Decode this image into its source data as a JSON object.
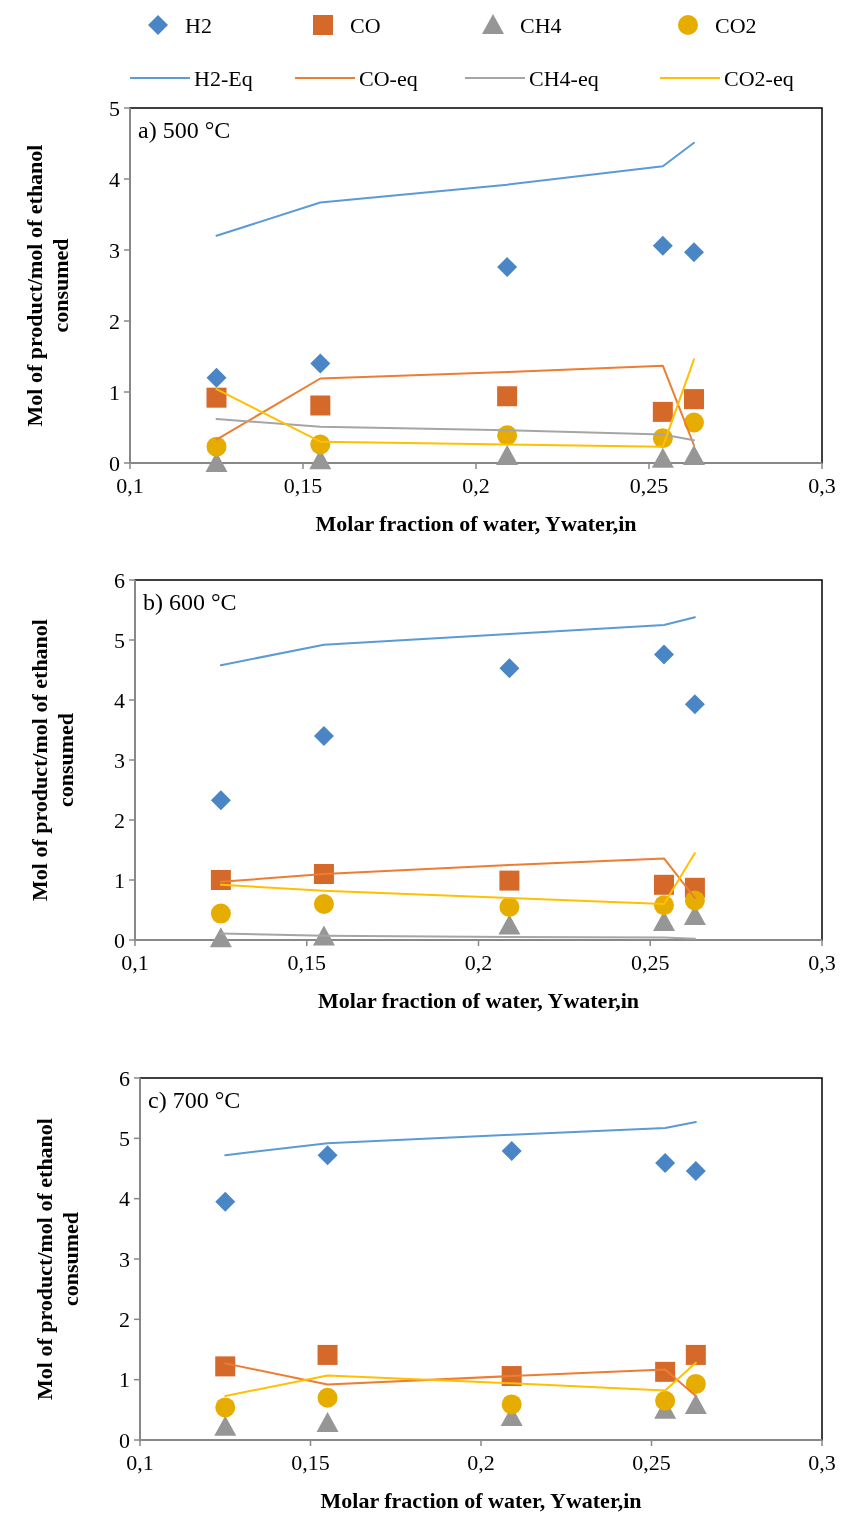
{
  "chart_data": [
    {
      "type": "scatter",
      "title": "a) 500 °C",
      "xlabel": "Molar fraction of water, Ywater,in",
      "ylabel": "Mol of product/mol of ethanol consumed",
      "x": [
        0.125,
        0.155,
        0.209,
        0.254,
        0.263
      ],
      "xlim": [
        0.1,
        0.3
      ],
      "xticks": [
        {
          "value": 0.1,
          "label": "0,1"
        },
        {
          "value": 0.15,
          "label": "0,15"
        },
        {
          "value": 0.2,
          "label": "0,2"
        },
        {
          "value": 0.25,
          "label": "0,25"
        },
        {
          "value": 0.3,
          "label": "0,3"
        }
      ],
      "ylim": [
        0,
        5
      ],
      "yticks": [
        0,
        1,
        2,
        3,
        4,
        5
      ],
      "grid": false,
      "legend": "top",
      "series": [
        {
          "name": "H2",
          "marker": "diamond",
          "color": "#4a86c5",
          "values": [
            1.2,
            1.4,
            2.76,
            3.06,
            2.97
          ]
        },
        {
          "name": "CO",
          "marker": "square",
          "color": "#d4692a",
          "values": [
            0.92,
            0.81,
            0.94,
            0.72,
            0.9
          ]
        },
        {
          "name": "CH4",
          "marker": "triangle",
          "color": "#969696",
          "values": [
            0.0,
            0.04,
            0.1,
            0.06,
            0.1
          ]
        },
        {
          "name": "CO2",
          "marker": "circle",
          "color": "#e6ac00",
          "values": [
            0.23,
            0.26,
            0.39,
            0.35,
            0.57
          ]
        },
        {
          "name": "H2-Eq",
          "type": "line",
          "marker": "none",
          "line_style": "solid",
          "color": "#5b9bd5",
          "values": [
            3.2,
            3.67,
            3.92,
            4.18,
            4.51
          ]
        },
        {
          "name": "CO-eq",
          "type": "line",
          "marker": "none",
          "line_style": "solid",
          "color": "#ed7d31",
          "values": [
            0.33,
            1.19,
            1.28,
            1.37,
            0.25
          ]
        },
        {
          "name": "CH4-eq",
          "type": "line",
          "marker": "none",
          "line_style": "solid",
          "color": "#a5a5a5",
          "values": [
            0.62,
            0.51,
            0.46,
            0.4,
            0.32
          ]
        },
        {
          "name": "CO2-eq",
          "type": "line",
          "marker": "none",
          "line_style": "solid",
          "color": "#ffc000",
          "values": [
            1.04,
            0.3,
            0.26,
            0.23,
            1.46
          ]
        }
      ]
    },
    {
      "type": "scatter",
      "title": "b) 600 °C",
      "xlabel": "Molar fraction of water, Ywater,in",
      "ylabel": "Mol of product/mol of ethanol consumed",
      "x": [
        0.125,
        0.155,
        0.209,
        0.254,
        0.263
      ],
      "xlim": [
        0.1,
        0.3
      ],
      "xticks": [
        {
          "value": 0.1,
          "label": "0,1"
        },
        {
          "value": 0.15,
          "label": "0,15"
        },
        {
          "value": 0.2,
          "label": "0,2"
        },
        {
          "value": 0.25,
          "label": "0,25"
        },
        {
          "value": 0.3,
          "label": "0,3"
        }
      ],
      "ylim": [
        0,
        6
      ],
      "yticks": [
        0,
        1,
        2,
        3,
        4,
        5,
        6
      ],
      "grid": false,
      "series": [
        {
          "marker": "diamond",
          "color": "#4a86c5",
          "values": [
            2.33,
            3.4,
            4.53,
            4.76,
            3.93
          ]
        },
        {
          "marker": "square",
          "color": "#d4692a",
          "values": [
            1.0,
            1.1,
            0.99,
            0.92,
            0.87
          ]
        },
        {
          "marker": "triangle",
          "color": "#969696",
          "values": [
            0.03,
            0.06,
            0.24,
            0.3,
            0.4
          ]
        },
        {
          "marker": "circle",
          "color": "#e6ac00",
          "values": [
            0.44,
            0.6,
            0.55,
            0.58,
            0.66
          ]
        },
        {
          "type": "line",
          "marker": "none",
          "line_style": "solid",
          "color": "#5b9bd5",
          "values": [
            4.58,
            4.92,
            5.1,
            5.25,
            5.38
          ]
        },
        {
          "type": "line",
          "marker": "none",
          "line_style": "solid",
          "color": "#ed7d31",
          "values": [
            0.97,
            1.1,
            1.25,
            1.36,
            0.7
          ]
        },
        {
          "type": "line",
          "marker": "none",
          "line_style": "solid",
          "color": "#a5a5a5",
          "values": [
            0.11,
            0.07,
            0.05,
            0.04,
            0.02
          ]
        },
        {
          "type": "line",
          "marker": "none",
          "line_style": "solid",
          "color": "#ffc000",
          "values": [
            0.92,
            0.82,
            0.7,
            0.6,
            1.45
          ]
        }
      ]
    },
    {
      "type": "scatter",
      "title": "c) 700 °C",
      "xlabel": "Molar fraction of water, Ywater,in",
      "ylabel": "Mol of product/mol of ethanol consumed",
      "x": [
        0.125,
        0.155,
        0.209,
        0.254,
        0.263
      ],
      "xlim": [
        0.1,
        0.3
      ],
      "xticks": [
        {
          "value": 0.1,
          "label": "0,1"
        },
        {
          "value": 0.15,
          "label": "0,15"
        },
        {
          "value": 0.2,
          "label": "0,2"
        },
        {
          "value": 0.25,
          "label": "0,25"
        },
        {
          "value": 0.3,
          "label": "0,3"
        }
      ],
      "ylim": [
        0,
        6
      ],
      "yticks": [
        0,
        1,
        2,
        3,
        4,
        5,
        6
      ],
      "grid": false,
      "series": [
        {
          "marker": "diamond",
          "color": "#4a86c5",
          "values": [
            3.95,
            4.72,
            4.79,
            4.59,
            4.46
          ]
        },
        {
          "marker": "square",
          "color": "#d4692a",
          "values": [
            1.22,
            1.41,
            1.06,
            1.13,
            1.41
          ]
        },
        {
          "marker": "triangle",
          "color": "#969696",
          "values": [
            0.22,
            0.28,
            0.38,
            0.5,
            0.58
          ]
        },
        {
          "marker": "circle",
          "color": "#e6ac00",
          "values": [
            0.54,
            0.7,
            0.59,
            0.65,
            0.93
          ]
        },
        {
          "type": "line",
          "marker": "none",
          "line_style": "solid",
          "color": "#5b9bd5",
          "values": [
            4.72,
            4.92,
            5.06,
            5.17,
            5.27
          ]
        },
        {
          "type": "line",
          "marker": "none",
          "line_style": "solid",
          "color": "#ed7d31",
          "values": [
            1.27,
            0.92,
            1.06,
            1.17,
            0.73
          ]
        },
        {
          "type": "line",
          "marker": "none",
          "line_style": "solid",
          "color": "#ffc000",
          "values": [
            0.73,
            1.07,
            0.94,
            0.82,
            1.28
          ]
        }
      ]
    }
  ]
}
